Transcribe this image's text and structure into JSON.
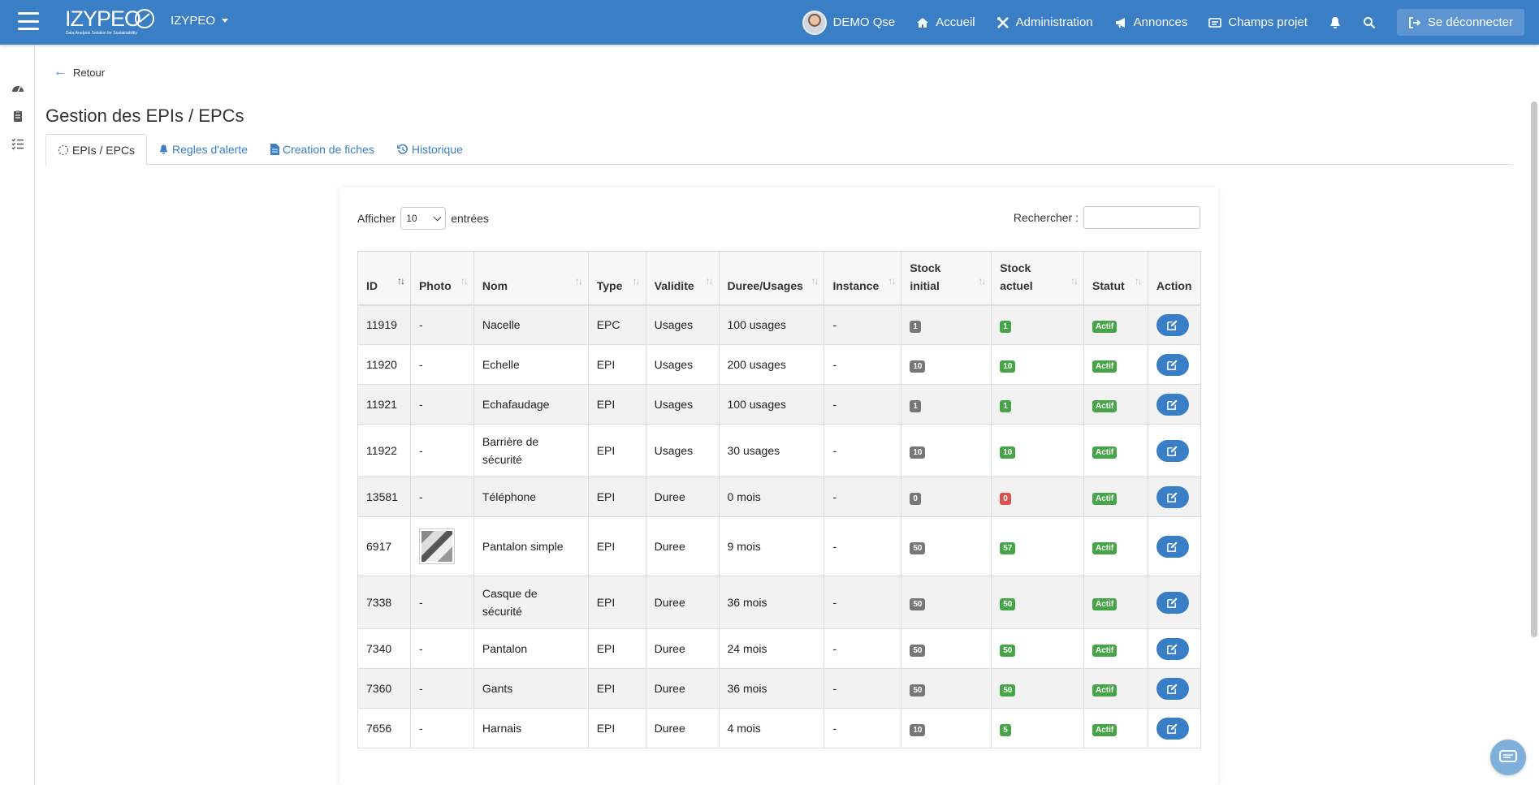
{
  "navbar": {
    "brand": "IZYPEO",
    "logo_text": "IZYPEO",
    "logo_tagline": "Data Analysis Solution for Sustainability",
    "user": "DEMO Qse",
    "items": [
      "Accueil",
      "Administration",
      "Annonces",
      "Champs projet"
    ],
    "logout": "Se déconnecter"
  },
  "back_label": "Retour",
  "page_title": "Gestion des EPIs / EPCs",
  "tabs": [
    "EPIs / EPCs",
    "Regles d'alerte",
    "Creation de fiches",
    "Historique"
  ],
  "controls": {
    "show_label": "Afficher",
    "show_value": "10",
    "entries_label": "entrées",
    "search_label": "Rechercher :"
  },
  "table": {
    "headers": [
      "ID",
      "Photo",
      "Nom",
      "Type",
      "Validite",
      "Duree/Usages",
      "Instance",
      "Stock initial",
      "Stock actuel",
      "Statut",
      "Action"
    ],
    "rows": [
      {
        "id": "11919",
        "photo": "-",
        "nom": "Nacelle",
        "type": "EPC",
        "validite": "Usages",
        "duree": "100 usages",
        "instance": "-",
        "stock_initial": "1",
        "stock_actuel": "1",
        "statut": "Actif"
      },
      {
        "id": "11920",
        "photo": "-",
        "nom": "Echelle",
        "type": "EPI",
        "validite": "Usages",
        "duree": "200 usages",
        "instance": "-",
        "stock_initial": "10",
        "stock_actuel": "10",
        "statut": "Actif"
      },
      {
        "id": "11921",
        "photo": "-",
        "nom": "Echafaudage",
        "type": "EPI",
        "validite": "Usages",
        "duree": "100 usages",
        "instance": "-",
        "stock_initial": "1",
        "stock_actuel": "1",
        "statut": "Actif"
      },
      {
        "id": "11922",
        "photo": "-",
        "nom": "Barrière de sécurité",
        "type": "EPI",
        "validite": "Usages",
        "duree": "30 usages",
        "instance": "-",
        "stock_initial": "10",
        "stock_actuel": "10",
        "statut": "Actif"
      },
      {
        "id": "13581",
        "photo": "-",
        "nom": "Téléphone",
        "type": "EPI",
        "validite": "Duree",
        "duree": "0 mois",
        "instance": "-",
        "stock_initial": "0",
        "stock_actuel": "0",
        "statut": "Actif"
      },
      {
        "id": "6917",
        "photo": "",
        "nom": "Pantalon simple",
        "type": "EPI",
        "validite": "Duree",
        "duree": "9 mois",
        "instance": "-",
        "stock_initial": "50",
        "stock_actuel": "57",
        "statut": "Actif"
      },
      {
        "id": "7338",
        "photo": "-",
        "nom": "Casque de sécurité",
        "type": "EPI",
        "validite": "Duree",
        "duree": "36 mois",
        "instance": "-",
        "stock_initial": "50",
        "stock_actuel": "50",
        "statut": "Actif"
      },
      {
        "id": "7340",
        "photo": "-",
        "nom": "Pantalon",
        "type": "EPI",
        "validite": "Duree",
        "duree": "24 mois",
        "instance": "-",
        "stock_initial": "50",
        "stock_actuel": "50",
        "statut": "Actif"
      },
      {
        "id": "7360",
        "photo": "-",
        "nom": "Gants",
        "type": "EPI",
        "validite": "Duree",
        "duree": "36 mois",
        "instance": "-",
        "stock_initial": "50",
        "stock_actuel": "50",
        "statut": "Actif"
      },
      {
        "id": "7656",
        "photo": "-",
        "nom": "Harnais",
        "type": "EPI",
        "validite": "Duree",
        "duree": "4 mois",
        "instance": "-",
        "stock_initial": "10",
        "stock_actuel": "5",
        "statut": "Actif"
      }
    ]
  },
  "colors": {
    "primary": "#3a7ec6",
    "badge_grey": "#777777",
    "badge_green": "#46a546",
    "badge_red": "#d9534f"
  }
}
